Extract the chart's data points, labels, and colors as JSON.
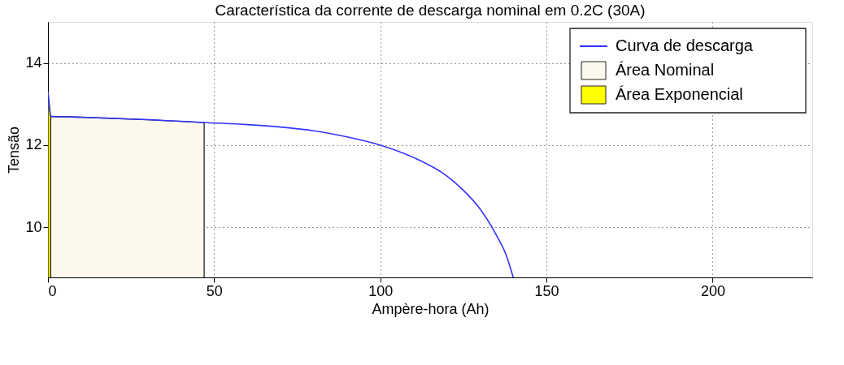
{
  "chart_data": {
    "type": "line",
    "title": "Característica da corrente de descarga nominal em 0.2C (30A)",
    "xlabel": "Ampère-hora (Ah)",
    "ylabel": "Tensão",
    "xlim": [
      0,
      230
    ],
    "xticks": [
      0,
      50,
      100,
      150,
      200
    ],
    "ylim": [
      8.78,
      15
    ],
    "yticks": [
      10,
      12,
      14
    ],
    "grid": true,
    "legend": "top right",
    "series": [
      {
        "name": "Curva de descarga",
        "color": "#3333ff",
        "x": [
          0,
          0.8,
          10,
          20,
          30,
          40,
          47,
          60,
          70,
          80,
          90,
          100,
          110,
          120,
          125,
          130,
          135,
          138,
          140
        ],
        "values": [
          13.3,
          12.7,
          12.68,
          12.65,
          12.62,
          12.58,
          12.55,
          12.5,
          12.44,
          12.35,
          12.2,
          12.0,
          11.7,
          11.25,
          10.9,
          10.45,
          9.8,
          9.3,
          8.78
        ]
      },
      {
        "name": "Área Nominal",
        "type": "area",
        "color": "#fcf8ec",
        "x": [
          0.8,
          10,
          20,
          30,
          40,
          47
        ],
        "values": [
          12.7,
          12.68,
          12.65,
          12.62,
          12.58,
          12.55
        ]
      },
      {
        "name": "Área Exponencial",
        "type": "area",
        "color": "#ffff00",
        "x": [
          0,
          0.8
        ],
        "values": [
          13.3,
          12.7
        ]
      }
    ]
  }
}
